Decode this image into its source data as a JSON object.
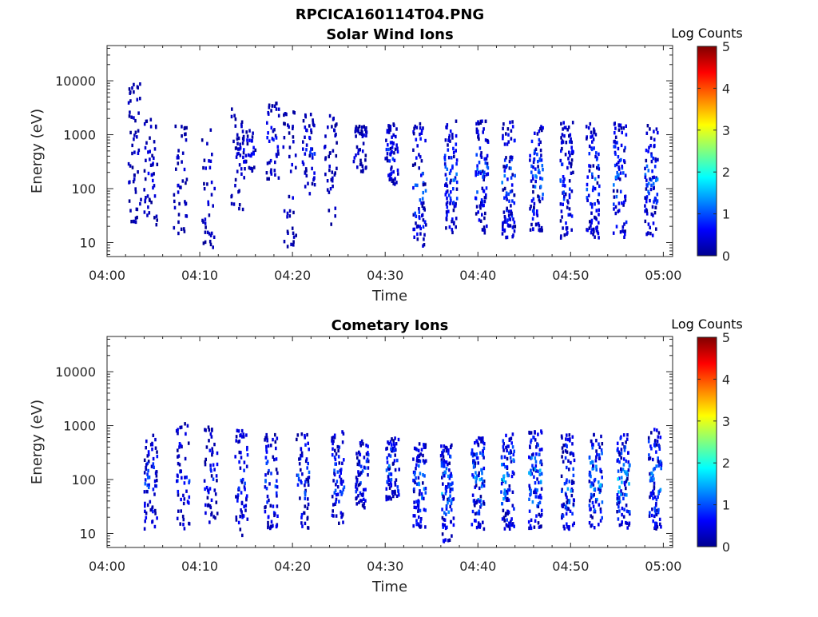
{
  "figure": {
    "title": "RPCICA160114T04.PNG"
  },
  "colors": {
    "cmap": [
      "#00008f",
      "#0000ff",
      "#0080ff",
      "#00ffff",
      "#80ff80",
      "#ffff00",
      "#ff8000",
      "#ff0000",
      "#800000"
    ]
  },
  "chart_data": [
    {
      "type": "heatmap",
      "title": "Solar Wind Ions",
      "xlabel": "Time",
      "ylabel": "Energy (eV)",
      "x_ticks": [
        "04:00",
        "04:10",
        "04:20",
        "04:30",
        "04:40",
        "04:50",
        "05:00"
      ],
      "x_range_minutes": [
        0,
        61
      ],
      "y_scale": "log",
      "y_ticks": [
        10,
        100,
        1000,
        10000
      ],
      "y_tick_labels": [
        "10",
        "100",
        "1000",
        "10000"
      ],
      "y_range": [
        5.5,
        45000
      ],
      "colorbar": {
        "label": "Log Counts",
        "range": [
          0,
          5
        ],
        "ticks": [
          "0",
          "1",
          "2",
          "3",
          "4",
          "5"
        ]
      },
      "grid": false,
      "bursts": [
        {
          "t": 2.9,
          "e_lo": 20,
          "e_hi": 9000,
          "n": 18,
          "max": 0.6
        },
        {
          "t": 4.6,
          "e_lo": 20,
          "e_hi": 2000,
          "n": 16,
          "max": 0.7
        },
        {
          "t": 7.8,
          "e_lo": 12,
          "e_hi": 1500,
          "n": 14,
          "max": 0.6
        },
        {
          "t": 10.8,
          "e_lo": 8,
          "e_hi": 1300,
          "n": 12,
          "max": 0.6
        },
        {
          "t": 14.0,
          "e_lo": 40,
          "e_hi": 3000,
          "n": 14,
          "max": 0.6
        },
        {
          "t": 15.2,
          "e_lo": 200,
          "e_hi": 1200,
          "n": 12,
          "max": 0.9
        },
        {
          "t": 17.8,
          "e_lo": 150,
          "e_hi": 4000,
          "n": 14,
          "max": 0.8
        },
        {
          "t": 19.6,
          "e_lo": 7,
          "e_hi": 3000,
          "n": 14,
          "max": 0.6
        },
        {
          "t": 21.6,
          "e_lo": 80,
          "e_hi": 2500,
          "n": 16,
          "max": 0.9
        },
        {
          "t": 24.0,
          "e_lo": 15,
          "e_hi": 2500,
          "n": 14,
          "max": 0.6
        },
        {
          "t": 27.2,
          "e_lo": 200,
          "e_hi": 1500,
          "n": 14,
          "max": 0.7
        },
        {
          "t": 30.6,
          "e_lo": 120,
          "e_hi": 1600,
          "n": 20,
          "max": 1.1
        },
        {
          "t": 33.6,
          "e_lo": 7,
          "e_hi": 1800,
          "n": 24,
          "max": 1.3
        },
        {
          "t": 37.0,
          "e_lo": 15,
          "e_hi": 1800,
          "n": 28,
          "max": 1.3
        },
        {
          "t": 40.3,
          "e_lo": 15,
          "e_hi": 1800,
          "n": 28,
          "max": 1.3
        },
        {
          "t": 43.2,
          "e_lo": 12,
          "e_hi": 1800,
          "n": 30,
          "max": 1.4
        },
        {
          "t": 46.2,
          "e_lo": 15,
          "e_hi": 1800,
          "n": 28,
          "max": 1.4
        },
        {
          "t": 49.5,
          "e_lo": 12,
          "e_hi": 1800,
          "n": 28,
          "max": 1.3
        },
        {
          "t": 52.3,
          "e_lo": 12,
          "e_hi": 1800,
          "n": 28,
          "max": 1.3
        },
        {
          "t": 55.2,
          "e_lo": 12,
          "e_hi": 1800,
          "n": 26,
          "max": 1.4
        },
        {
          "t": 58.6,
          "e_lo": 12,
          "e_hi": 1800,
          "n": 28,
          "max": 1.3
        }
      ]
    },
    {
      "type": "heatmap",
      "title": "Cometary Ions",
      "xlabel": "Time",
      "ylabel": "Energy (eV)",
      "x_ticks": [
        "04:00",
        "04:10",
        "04:20",
        "04:30",
        "04:40",
        "04:50",
        "05:00"
      ],
      "x_range_minutes": [
        0,
        61
      ],
      "y_scale": "log",
      "y_ticks": [
        10,
        100,
        1000,
        10000
      ],
      "y_tick_labels": [
        "10",
        "100",
        "1000",
        "10000"
      ],
      "y_range": [
        5.5,
        45000
      ],
      "colorbar": {
        "label": "Log Counts",
        "range": [
          0,
          5
        ],
        "ticks": [
          "0",
          "1",
          "2",
          "3",
          "4",
          "5"
        ]
      },
      "grid": false,
      "bursts": [
        {
          "t": 4.6,
          "e_lo": 12,
          "e_hi": 700,
          "n": 22,
          "max": 1.2
        },
        {
          "t": 8.1,
          "e_lo": 12,
          "e_hi": 1100,
          "n": 18,
          "max": 1.1
        },
        {
          "t": 11.1,
          "e_lo": 15,
          "e_hi": 1000,
          "n": 18,
          "max": 1.0
        },
        {
          "t": 14.4,
          "e_lo": 7,
          "e_hi": 900,
          "n": 20,
          "max": 1.1
        },
        {
          "t": 17.6,
          "e_lo": 12,
          "e_hi": 700,
          "n": 22,
          "max": 1.3
        },
        {
          "t": 21.0,
          "e_lo": 12,
          "e_hi": 800,
          "n": 20,
          "max": 1.3
        },
        {
          "t": 24.8,
          "e_lo": 15,
          "e_hi": 800,
          "n": 22,
          "max": 1.3
        },
        {
          "t": 27.4,
          "e_lo": 30,
          "e_hi": 700,
          "n": 22,
          "max": 1.3
        },
        {
          "t": 30.7,
          "e_lo": 40,
          "e_hi": 600,
          "n": 26,
          "max": 1.5
        },
        {
          "t": 33.6,
          "e_lo": 12,
          "e_hi": 500,
          "n": 28,
          "max": 1.6
        },
        {
          "t": 36.6,
          "e_lo": 7,
          "e_hi": 500,
          "n": 34,
          "max": 1.7
        },
        {
          "t": 39.9,
          "e_lo": 12,
          "e_hi": 600,
          "n": 32,
          "max": 1.7
        },
        {
          "t": 43.1,
          "e_lo": 12,
          "e_hi": 700,
          "n": 32,
          "max": 1.8
        },
        {
          "t": 46.1,
          "e_lo": 12,
          "e_hi": 800,
          "n": 32,
          "max": 1.8
        },
        {
          "t": 49.6,
          "e_lo": 12,
          "e_hi": 700,
          "n": 30,
          "max": 1.7
        },
        {
          "t": 52.6,
          "e_lo": 12,
          "e_hi": 700,
          "n": 30,
          "max": 1.8
        },
        {
          "t": 55.6,
          "e_lo": 12,
          "e_hi": 700,
          "n": 30,
          "max": 1.8
        },
        {
          "t": 59.0,
          "e_lo": 12,
          "e_hi": 900,
          "n": 30,
          "max": 1.7
        }
      ]
    }
  ]
}
